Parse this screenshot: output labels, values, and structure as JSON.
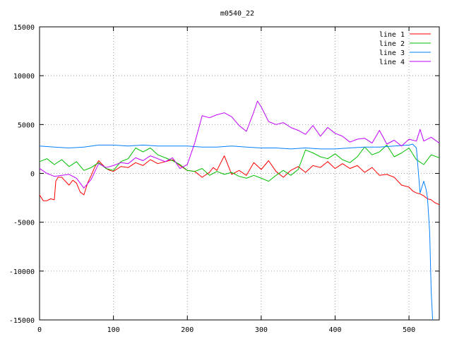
{
  "chart_data": {
    "type": "line",
    "title": "m0540_22",
    "xlabel": "",
    "ylabel": "",
    "xlim": [
      0,
      541
    ],
    "ylim": [
      -15000,
      15000
    ],
    "grid": true,
    "legend_position": "top-right",
    "xticks": [
      0,
      100,
      200,
      300,
      400,
      500
    ],
    "yticks": [
      -15000,
      -10000,
      -5000,
      0,
      5000,
      10000,
      15000
    ],
    "series": [
      {
        "name": "line 1",
        "color": "#ff0000",
        "x": [
          0,
          5,
          10,
          15,
          20,
          22,
          25,
          30,
          35,
          40,
          45,
          50,
          55,
          60,
          65,
          70,
          75,
          80,
          85,
          90,
          95,
          100,
          110,
          120,
          130,
          140,
          150,
          160,
          170,
          180,
          190,
          200,
          210,
          220,
          230,
          235,
          240,
          250,
          260,
          270,
          280,
          290,
          300,
          310,
          320,
          330,
          340,
          350,
          360,
          370,
          380,
          390,
          400,
          410,
          420,
          430,
          440,
          450,
          460,
          470,
          480,
          490,
          500,
          505,
          510,
          515,
          520,
          525,
          530,
          535,
          541
        ],
        "y": [
          -2200,
          -2800,
          -2800,
          -2600,
          -2700,
          -800,
          -400,
          -400,
          -800,
          -1200,
          -700,
          -1000,
          -1900,
          -2200,
          -1000,
          -200,
          700,
          1300,
          900,
          500,
          300,
          200,
          700,
          600,
          1100,
          800,
          1400,
          1000,
          1200,
          1400,
          800,
          300,
          200,
          -400,
          100,
          600,
          300,
          1800,
          -100,
          300,
          -200,
          1100,
          400,
          1300,
          200,
          -400,
          300,
          700,
          100,
          800,
          600,
          1200,
          500,
          1000,
          500,
          800,
          100,
          600,
          -200,
          -100,
          -400,
          -1200,
          -1400,
          -1800,
          -2000,
          -2100,
          -2300,
          -2600,
          -2700,
          -3000,
          -3200
        ]
      },
      {
        "name": "line 2",
        "color": "#00c000",
        "x": [
          0,
          10,
          20,
          30,
          40,
          50,
          60,
          70,
          80,
          90,
          100,
          110,
          120,
          130,
          140,
          150,
          160,
          170,
          180,
          190,
          200,
          210,
          220,
          230,
          240,
          250,
          260,
          270,
          280,
          290,
          300,
          310,
          320,
          330,
          340,
          350,
          360,
          370,
          380,
          390,
          400,
          410,
          420,
          430,
          440,
          450,
          460,
          470,
          480,
          490,
          500,
          510,
          520,
          530,
          541
        ],
        "y": [
          1200,
          1500,
          900,
          1400,
          700,
          1200,
          300,
          600,
          1100,
          500,
          300,
          1200,
          1500,
          2600,
          2200,
          2600,
          1900,
          1600,
          1300,
          900,
          300,
          200,
          500,
          -200,
          200,
          -100,
          100,
          -300,
          -500,
          -200,
          -500,
          -800,
          -200,
          300,
          -200,
          400,
          2400,
          2100,
          1700,
          1500,
          2000,
          1400,
          1100,
          1700,
          2700,
          1900,
          2200,
          2900,
          1700,
          2100,
          2600,
          1400,
          900,
          1900,
          1600
        ]
      },
      {
        "name": "line 3",
        "color": "#0080ff",
        "x": [
          0,
          20,
          40,
          60,
          80,
          100,
          120,
          140,
          160,
          180,
          200,
          220,
          240,
          260,
          280,
          300,
          320,
          340,
          360,
          380,
          400,
          420,
          440,
          460,
          480,
          500,
          505,
          510,
          515,
          520,
          523,
          525,
          528,
          530,
          532
        ],
        "y": [
          2800,
          2700,
          2600,
          2700,
          2900,
          2900,
          2800,
          2900,
          2800,
          2800,
          2800,
          2700,
          2700,
          2800,
          2700,
          2600,
          2600,
          2500,
          2600,
          2500,
          2500,
          2600,
          2700,
          2700,
          2800,
          2900,
          3000,
          2600,
          -2000,
          -800,
          -1600,
          -2500,
          -6000,
          -12000,
          -15000
        ]
      },
      {
        "name": "line 4",
        "color": "#c000ff",
        "x": [
          0,
          10,
          20,
          30,
          40,
          50,
          60,
          70,
          80,
          90,
          100,
          110,
          120,
          130,
          140,
          150,
          160,
          170,
          180,
          190,
          200,
          210,
          220,
          230,
          240,
          250,
          260,
          270,
          280,
          290,
          295,
          300,
          310,
          320,
          330,
          340,
          350,
          360,
          370,
          380,
          390,
          400,
          410,
          420,
          430,
          440,
          450,
          460,
          470,
          480,
          490,
          500,
          510,
          515,
          520,
          530,
          541
        ],
        "y": [
          500,
          0,
          -300,
          -200,
          -100,
          -500,
          -1500,
          -600,
          1000,
          600,
          800,
          1100,
          1000,
          1600,
          1300,
          1800,
          1500,
          1200,
          1600,
          500,
          900,
          3100,
          5900,
          5700,
          6000,
          6200,
          5800,
          4900,
          4300,
          6300,
          7400,
          6800,
          5300,
          5000,
          5200,
          4700,
          4400,
          4000,
          4900,
          3800,
          4700,
          4100,
          3800,
          3200,
          3500,
          3600,
          3100,
          4400,
          3000,
          3400,
          2800,
          3500,
          3300,
          4500,
          3300,
          3700,
          3100
        ]
      }
    ]
  }
}
